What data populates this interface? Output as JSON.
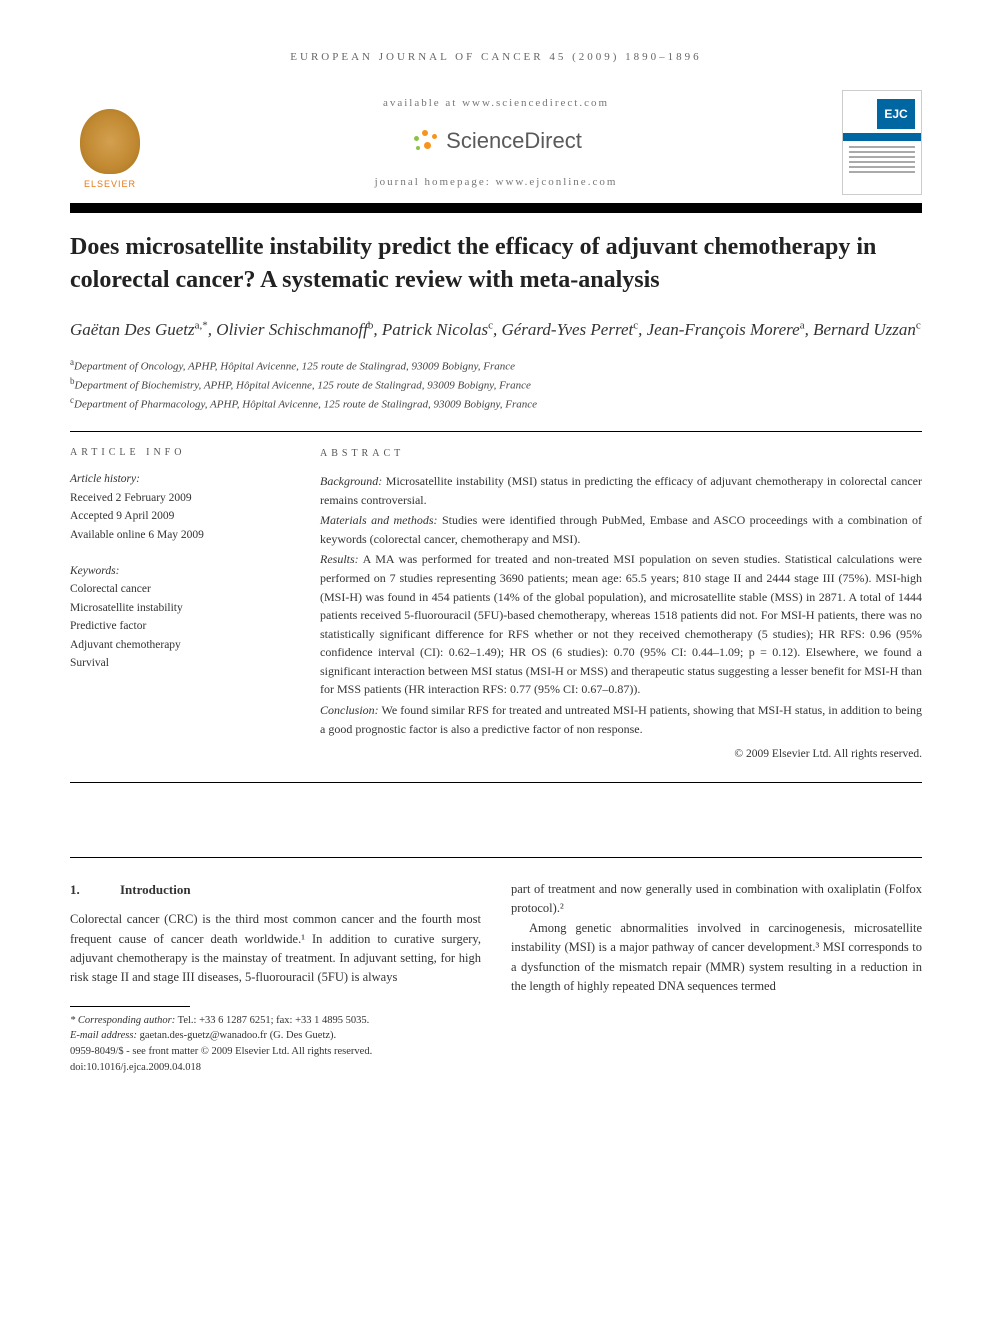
{
  "running_header": "EUROPEAN JOURNAL OF CANCER 45 (2009) 1890–1896",
  "banner": {
    "available_at": "available at www.sciencedirect.com",
    "sd_name": "ScienceDirect",
    "homepage": "journal homepage: www.ejconline.com",
    "publisher_name": "ELSEVIER",
    "cover_abbrev": "EJC"
  },
  "title": "Does microsatellite instability predict the efficacy of adjuvant chemotherapy in colorectal cancer? A systematic review with meta-analysis",
  "authors_html": "Gaëtan Des Guetz<sup>a,*</sup>, Olivier Schischmanoff<sup>b</sup>, Patrick Nicolas<sup>c</sup>, Gérard-Yves Perret<sup>c</sup>, Jean-François Morere<sup>a</sup>, Bernard Uzzan<sup>c</sup>",
  "affiliations": [
    {
      "mark": "a",
      "text": "Department of Oncology, APHP, Hôpital Avicenne, 125 route de Stalingrad, 93009 Bobigny, France"
    },
    {
      "mark": "b",
      "text": "Department of Biochemistry, APHP, Hôpital Avicenne, 125 route de Stalingrad, 93009 Bobigny, France"
    },
    {
      "mark": "c",
      "text": "Department of Pharmacology, APHP, Hôpital Avicenne, 125 route de Stalingrad, 93009 Bobigny, France"
    }
  ],
  "article_info": {
    "heading": "ARTICLE INFO",
    "history_label": "Article history:",
    "received": "Received 2 February 2009",
    "accepted": "Accepted 9 April 2009",
    "online": "Available online 6 May 2009",
    "keywords_label": "Keywords:",
    "keywords": [
      "Colorectal cancer",
      "Microsatellite instability",
      "Predictive factor",
      "Adjuvant chemotherapy",
      "Survival"
    ]
  },
  "abstract": {
    "heading": "ABSTRACT",
    "background_label": "Background:",
    "background": "Microsatellite instability (MSI) status in predicting the efficacy of adjuvant chemotherapy in colorectal cancer remains controversial.",
    "methods_label": "Materials and methods:",
    "methods": "Studies were identified through PubMed, Embase and ASCO proceedings with a combination of keywords (colorectal cancer, chemotherapy and MSI).",
    "results_label": "Results:",
    "results": "A MA was performed for treated and non-treated MSI population on seven studies. Statistical calculations were performed on 7 studies representing 3690 patients; mean age: 65.5 years; 810 stage II and 2444 stage III (75%). MSI-high (MSI-H) was found in 454 patients (14% of the global population), and microsatellite stable (MSS) in 2871. A total of 1444 patients received 5-fluorouracil (5FU)-based chemotherapy, whereas 1518 patients did not. For MSI-H patients, there was no statistically significant difference for RFS whether or not they received chemotherapy (5 studies); HR RFS: 0.96 (95% confidence interval (CI): 0.62–1.49); HR OS (6 studies): 0.70 (95% CI: 0.44–1.09; p = 0.12). Elsewhere, we found a significant interaction between MSI status (MSI-H or MSS) and therapeutic status suggesting a lesser benefit for MSI-H than for MSS patients (HR interaction RFS: 0.77 (95% CI: 0.67–0.87)).",
    "conclusion_label": "Conclusion:",
    "conclusion": "We found similar RFS for treated and untreated MSI-H patients, showing that MSI-H status, in addition to being a good prognostic factor is also a predictive factor of non response.",
    "copyright": "© 2009 Elsevier Ltd. All rights reserved."
  },
  "body": {
    "section_num": "1.",
    "section_title": "Introduction",
    "col1_p1": "Colorectal cancer (CRC) is the third most common cancer and the fourth most frequent cause of cancer death worldwide.¹ In addition to curative surgery, adjuvant chemotherapy is the mainstay of treatment. In adjuvant setting, for high risk stage II and stage III diseases, 5-fluorouracil (5FU) is always",
    "col2_p1": "part of treatment and now generally used in combination with oxaliplatin (Folfox protocol).²",
    "col2_p2": "Among genetic abnormalities involved in carcinogenesis, microsatellite instability (MSI) is a major pathway of cancer development.³ MSI corresponds to a dysfunction of the mismatch repair (MMR) system resulting in a reduction in the length of highly repeated DNA sequences termed"
  },
  "footnotes": {
    "corr_label": "* Corresponding author:",
    "corr_text": "Tel.: +33 6 1287 6251; fax: +33 1 4895 5035.",
    "email_label": "E-mail address:",
    "email": "gaetan.des-guetz@wanadoo.fr",
    "email_who": "(G. Des Guetz).",
    "issn_line": "0959-8049/$ - see front matter © 2009 Elsevier Ltd. All rights reserved.",
    "doi_line": "doi:10.1016/j.ejca.2009.04.018"
  },
  "colors": {
    "text": "#333333",
    "rule": "#000000",
    "elsevier_orange": "#e67817",
    "sd_orange": "#f7941e",
    "sd_green": "#8bc34a",
    "ejc_blue": "#0066a1"
  }
}
